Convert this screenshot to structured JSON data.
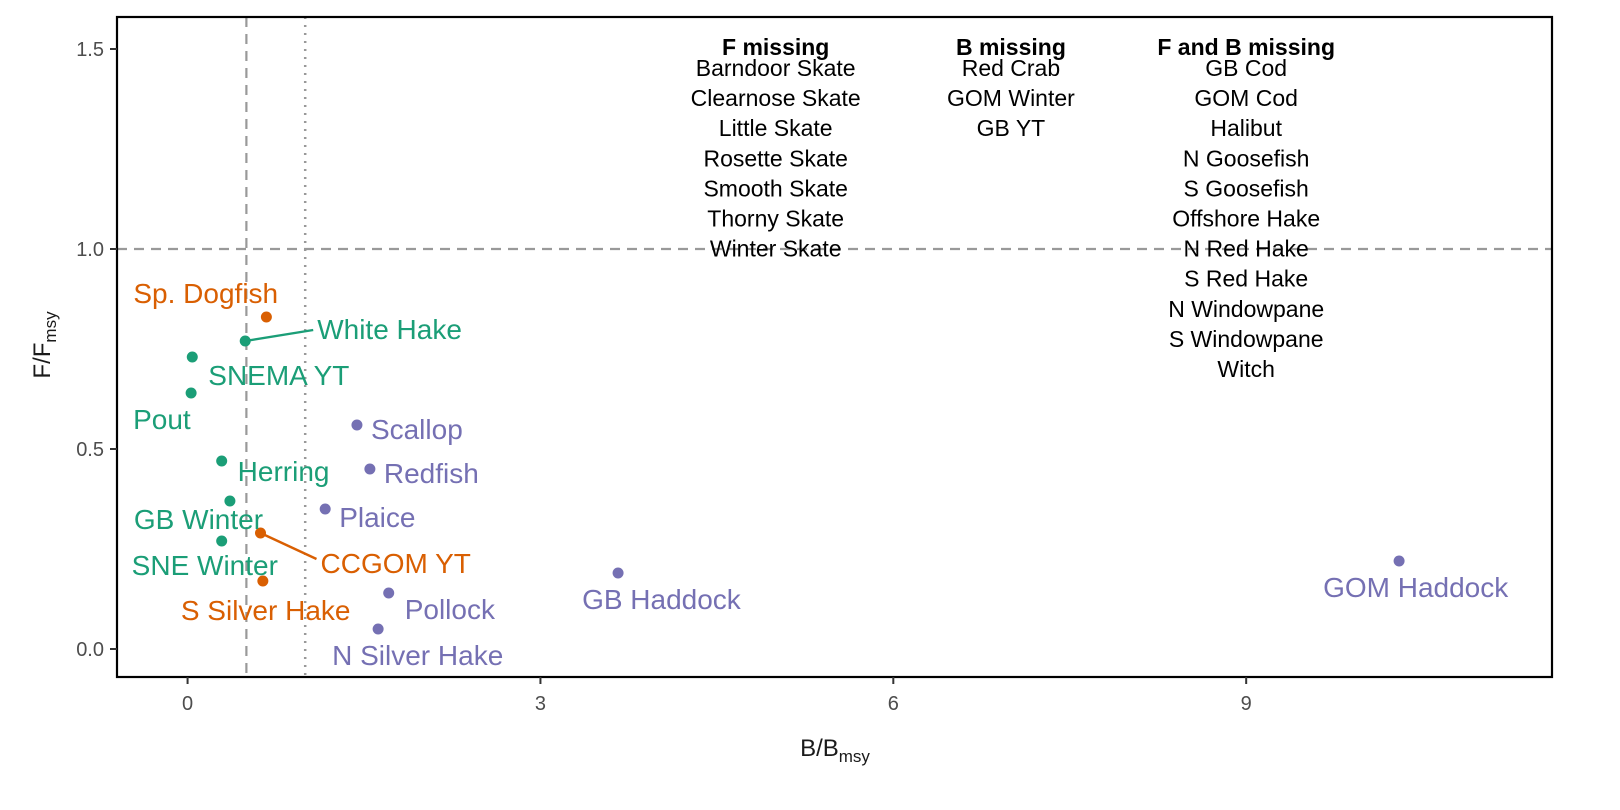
{
  "colors": {
    "group_green": "#1b9e77",
    "group_orange": "#d95f02",
    "group_purple": "#7570b3",
    "reference_line": "#999999",
    "frame": "#000000"
  },
  "chart_data": {
    "type": "scatter",
    "title": "",
    "xlabel": {
      "main": "B",
      "sub": "msy",
      "sep": "/",
      "main_prefix": "B"
    },
    "ylabel": {
      "main": "F",
      "sub": "msy",
      "sep": "/",
      "main_prefix": "F"
    },
    "xlim": [
      -0.6,
      11.6
    ],
    "ylim": [
      -0.07,
      1.58
    ],
    "x_ticks": [
      0,
      3,
      6,
      9
    ],
    "x_tick_labels": [
      "0",
      "3",
      "6",
      "9"
    ],
    "y_ticks": [
      0.0,
      0.5,
      1.0,
      1.5
    ],
    "y_tick_labels": [
      "0.0",
      "0.5",
      "1.0",
      "1.5"
    ],
    "grid": false,
    "legend": "none",
    "reference_lines": [
      {
        "axis": "x",
        "value": 0.5,
        "style": "dashed"
      },
      {
        "axis": "x",
        "value": 1.0,
        "style": "dotted"
      },
      {
        "axis": "y",
        "value": 1.0,
        "style": "dashed"
      }
    ],
    "points": [
      {
        "label": "Sp. Dogfish",
        "x": 0.67,
        "y": 0.83,
        "group": "orange"
      },
      {
        "label": "White Hake",
        "x": 0.49,
        "y": 0.77,
        "group": "green"
      },
      {
        "label": "SNEMA YT",
        "x": 0.04,
        "y": 0.73,
        "group": "green"
      },
      {
        "label": "Pout",
        "x": 0.03,
        "y": 0.64,
        "group": "green"
      },
      {
        "label": "Herring",
        "x": 0.29,
        "y": 0.47,
        "group": "green"
      },
      {
        "label": "GB Winter",
        "x": 0.36,
        "y": 0.37,
        "group": "green"
      },
      {
        "label": "SNE Winter",
        "x": 0.29,
        "y": 0.27,
        "group": "green"
      },
      {
        "label": "CCGOM YT",
        "x": 0.62,
        "y": 0.29,
        "group": "orange"
      },
      {
        "label": "S Silver Hake",
        "x": 0.64,
        "y": 0.17,
        "group": "orange"
      },
      {
        "label": "Scallop",
        "x": 1.44,
        "y": 0.56,
        "group": "purple"
      },
      {
        "label": "Redfish",
        "x": 1.55,
        "y": 0.45,
        "group": "purple"
      },
      {
        "label": "Plaice",
        "x": 1.17,
        "y": 0.35,
        "group": "purple"
      },
      {
        "label": "Pollock",
        "x": 1.71,
        "y": 0.14,
        "group": "purple"
      },
      {
        "label": "N Silver Hake",
        "x": 1.62,
        "y": 0.05,
        "group": "purple"
      },
      {
        "label": "GB Haddock",
        "x": 3.66,
        "y": 0.19,
        "group": "purple"
      },
      {
        "label": "GOM Haddock",
        "x": 10.3,
        "y": 0.22,
        "group": "purple"
      }
    ],
    "missing_lists": [
      {
        "heading": "F missing",
        "x": 5.0,
        "items": [
          "Barndoor Skate",
          "Clearnose Skate",
          "Little Skate",
          "Rosette Skate",
          "Smooth Skate",
          "Thorny Skate",
          "Winter Skate"
        ]
      },
      {
        "heading": "B missing",
        "x": 7.0,
        "items": [
          "Red Crab",
          "GOM Winter",
          "GB YT"
        ]
      },
      {
        "heading": "F and B missing",
        "x": 9.0,
        "items": [
          "GB Cod",
          "GOM Cod",
          "Halibut",
          "N Goosefish",
          "S Goosefish",
          "Offshore Hake",
          "N Red Hake",
          "S Red Hake",
          "N Windowpane",
          "S Windowpane",
          "Witch"
        ]
      }
    ]
  }
}
